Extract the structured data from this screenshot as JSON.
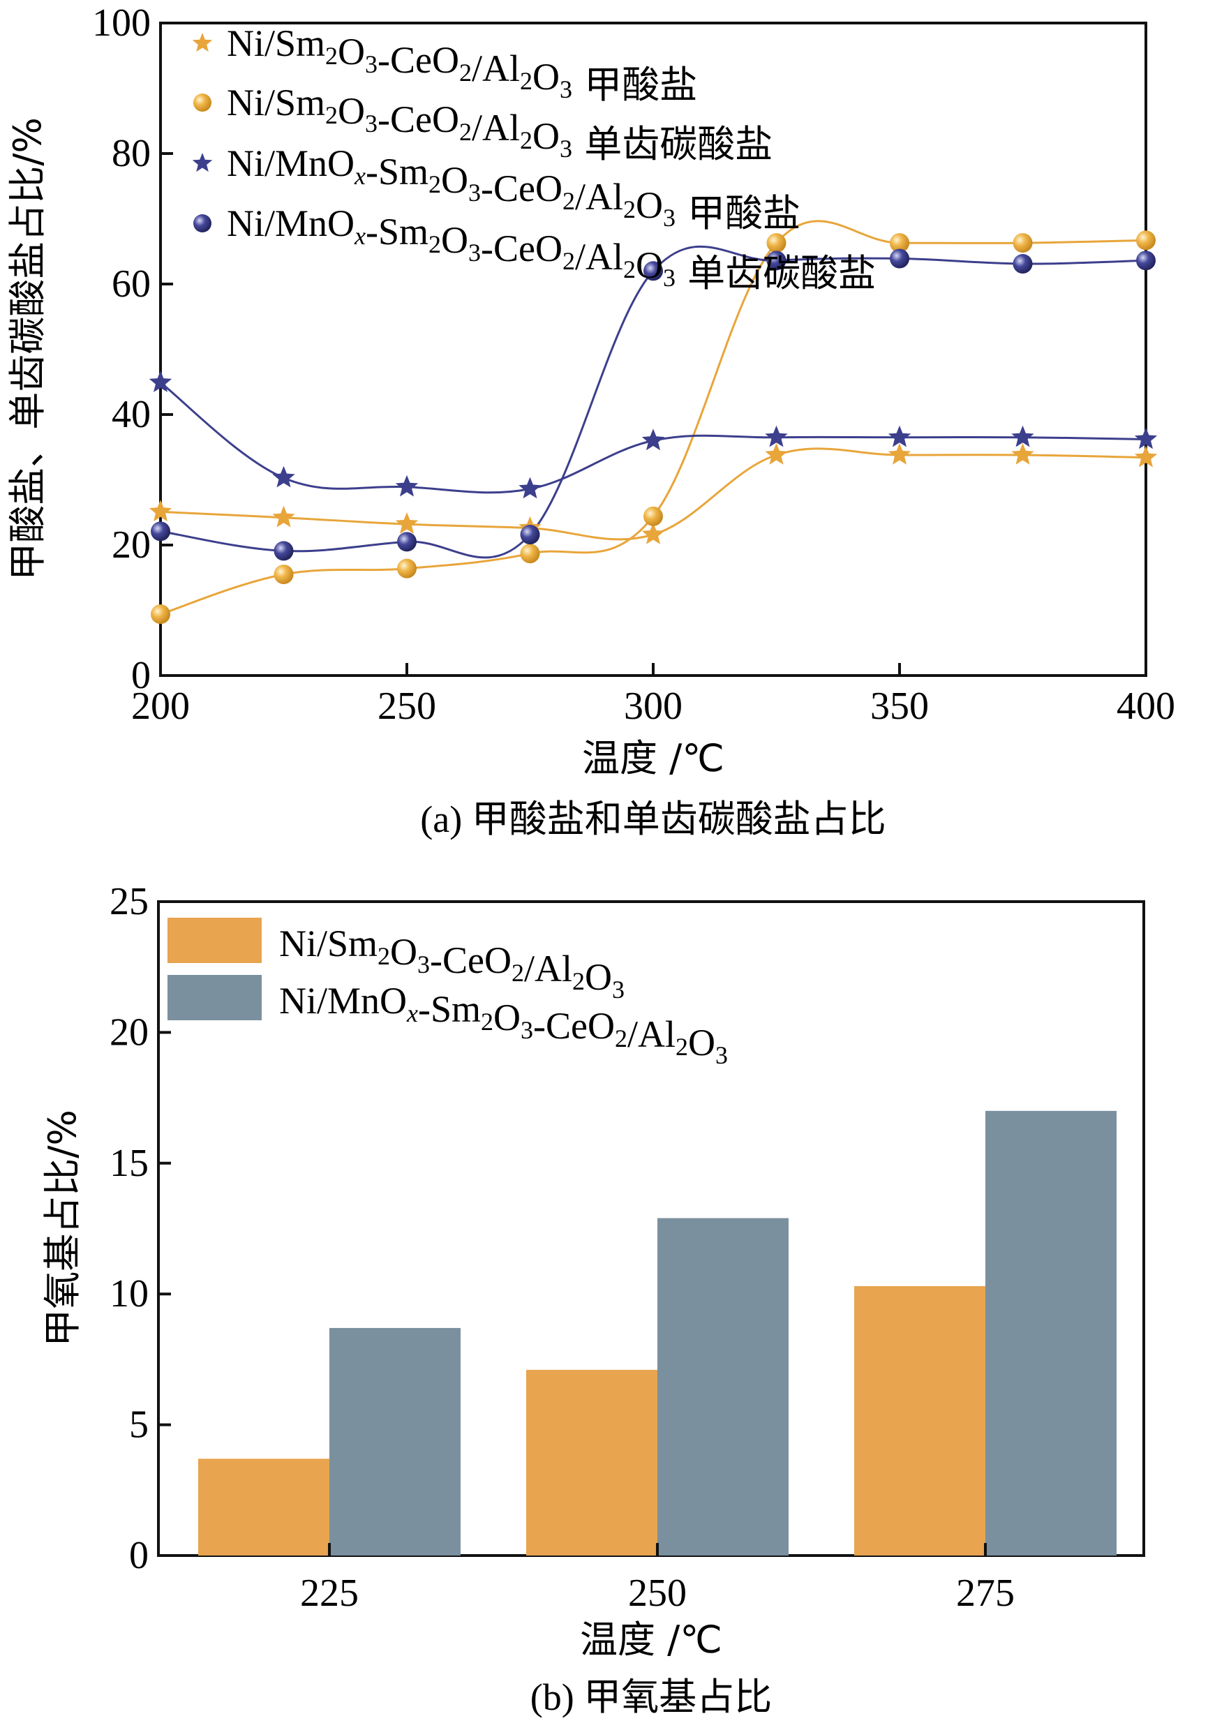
{
  "chart_data": [
    {
      "type": "line",
      "title": "",
      "caption": "(a) 甲酸盐和单齿碳酸盐占比",
      "xlabel": "温度 /℃",
      "ylabel": "甲酸盐、单齿碳酸盐占比/%",
      "xlim": [
        200,
        400
      ],
      "ylim": [
        0,
        100
      ],
      "xticks": [
        200,
        250,
        300,
        350,
        400
      ],
      "yticks": [
        0,
        20,
        40,
        60,
        80,
        100
      ],
      "grid": false,
      "legend_position": "top-left",
      "x": [
        200,
        225,
        250,
        275,
        300,
        325,
        350,
        375,
        400
      ],
      "series": [
        {
          "name": "Ni/Sm2O3-CeO2/Al2O3 甲酸盐",
          "marker": "star",
          "color": "#E8A53A",
          "values": [
            25.1,
            24.2,
            23.2,
            22.6,
            21.6,
            33.8,
            33.8,
            33.8,
            33.4
          ]
        },
        {
          "name": "Ni/Sm2O3-CeO2/Al2O3 单齿碳酸盐",
          "marker": "circle",
          "color": "#E8A53A",
          "values": [
            9.4,
            15.5,
            16.4,
            18.7,
            24.4,
            66.3,
            66.3,
            66.3,
            66.7
          ]
        },
        {
          "name": "Ni/MnOx-Sm2O3-CeO2/Al2O3 甲酸盐",
          "marker": "star",
          "color": "#3C3F8C",
          "values": [
            44.9,
            30.3,
            28.9,
            28.6,
            36.0,
            36.5,
            36.5,
            36.5,
            36.2
          ]
        },
        {
          "name": "Ni/MnOx-Sm2O3-CeO2/Al2O3 单齿碳酸盐",
          "marker": "circle",
          "color": "#3C3F8C",
          "values": [
            22.1,
            19.1,
            20.5,
            21.6,
            62.0,
            63.6,
            63.9,
            63.1,
            63.6
          ]
        }
      ],
      "legend": [
        {
          "pre": "Ni/Sm",
          "s1": "2",
          "m1": "O",
          "s2": "3",
          "m2": "-CeO",
          "s3": "2",
          "m3": "/Al",
          "s4": "2",
          "m4": "O",
          "s5": "3",
          "suffix": " 甲酸盐"
        },
        {
          "pre": "Ni/Sm",
          "s1": "2",
          "m1": "O",
          "s2": "3",
          "m2": "-CeO",
          "s3": "2",
          "m3": "/Al",
          "s4": "2",
          "m4": "O",
          "s5": "3",
          "suffix": " 单齿碳酸盐"
        },
        {
          "pre": "Ni/MnO",
          "x": "x",
          "mid": "-Sm",
          "s1": "2",
          "m1": "O",
          "s2": "3",
          "m2": "-CeO",
          "s3": "2",
          "m3": "/Al",
          "s4": "2",
          "m4": "O",
          "s5": "3",
          "suffix": " 甲酸盐"
        },
        {
          "pre": "Ni/MnO",
          "x": "x",
          "mid": "-Sm",
          "s1": "2",
          "m1": "O",
          "s2": "3",
          "m2": "-CeO",
          "s3": "2",
          "m3": "/Al",
          "s4": "2",
          "m4": "O",
          "s5": "3",
          "suffix": " 单齿碳酸盐"
        }
      ]
    },
    {
      "type": "bar",
      "title": "",
      "caption": "(b) 甲氧基占比",
      "xlabel": "温度 /℃",
      "ylabel": "甲氧基占比/%",
      "categories": [
        "225",
        "250",
        "275"
      ],
      "ylim": [
        0,
        25
      ],
      "yticks": [
        0,
        5,
        10,
        15,
        20,
        25
      ],
      "grid": false,
      "legend_position": "top-left",
      "series": [
        {
          "name": "Ni/Sm2O3-CeO2/Al2O3",
          "color": "#E8A44E",
          "values": [
            3.7,
            7.1,
            10.3
          ]
        },
        {
          "name": "Ni/MnOx-Sm2O3-CeO2/Al2O3",
          "color": "#7A909E",
          "values": [
            8.7,
            12.9,
            17.0
          ]
        }
      ],
      "legend": [
        {
          "pre": "Ni/Sm",
          "s1": "2",
          "m1": "O",
          "s2": "3",
          "m2": "-CeO",
          "s3": "2",
          "m3": "/Al",
          "s4": "2",
          "m4": "O",
          "s5": "3",
          "suffix": ""
        },
        {
          "pre": "Ni/MnO",
          "x": "x",
          "mid": "-Sm",
          "s1": "2",
          "m1": "O",
          "s2": "3",
          "m2": "-CeO",
          "s3": "2",
          "m3": "/Al",
          "s4": "2",
          "m4": "O",
          "s5": "3",
          "suffix": ""
        }
      ]
    }
  ]
}
